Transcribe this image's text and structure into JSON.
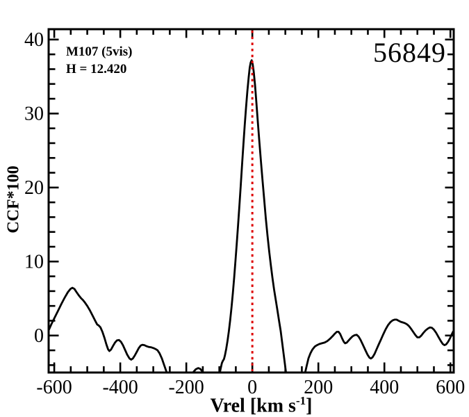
{
  "figure": {
    "background": "#ffffff",
    "frame_color": "#000000"
  },
  "chart_data": {
    "type": "line",
    "title": "",
    "ylabel": "CCF*100",
    "xlabel_parts": {
      "main": "Vrel [km s",
      "sup": "-1",
      "close": "]"
    },
    "xlim": [
      -617,
      610
    ],
    "ylim": [
      -5.0,
      41.4
    ],
    "x_major_ticks": [
      -600,
      -400,
      -200,
      0,
      200,
      400,
      600
    ],
    "x_minor_step": 50,
    "y_major_ticks": [
      0,
      10,
      20,
      30,
      40
    ],
    "y_minor_step": 2,
    "grid": false,
    "legend": null,
    "marker_line": {
      "x": 0,
      "color": "#dd0000",
      "style": "dotted"
    },
    "annotations": [
      {
        "id": "target-name",
        "text": "M107 (5vis)"
      },
      {
        "id": "h-magnitude",
        "text": "H = 12.420"
      },
      {
        "id": "mjd-number",
        "text": "56849"
      }
    ],
    "series": [
      {
        "name": "ccf-curve",
        "color": "#000000",
        "points": [
          [
            -617,
            0.7
          ],
          [
            -608,
            1.6
          ],
          [
            -598,
            2.5
          ],
          [
            -588,
            3.4
          ],
          [
            -578,
            4.3
          ],
          [
            -568,
            5.15
          ],
          [
            -559,
            5.85
          ],
          [
            -551,
            6.3
          ],
          [
            -545,
            6.45
          ],
          [
            -539,
            6.3
          ],
          [
            -533,
            5.9
          ],
          [
            -526,
            5.45
          ],
          [
            -519,
            5.05
          ],
          [
            -513,
            4.8
          ],
          [
            -507,
            4.45
          ],
          [
            -500,
            4.0
          ],
          [
            -492,
            3.4
          ],
          [
            -484,
            2.7
          ],
          [
            -476,
            2.0
          ],
          [
            -470,
            1.5
          ],
          [
            -465,
            1.35
          ],
          [
            -460,
            1.1
          ],
          [
            -454,
            0.5
          ],
          [
            -448,
            -0.3
          ],
          [
            -442,
            -1.2
          ],
          [
            -437,
            -1.85
          ],
          [
            -433,
            -2.1
          ],
          [
            -428,
            -1.9
          ],
          [
            -422,
            -1.4
          ],
          [
            -416,
            -0.95
          ],
          [
            -410,
            -0.65
          ],
          [
            -404,
            -0.6
          ],
          [
            -398,
            -0.85
          ],
          [
            -392,
            -1.3
          ],
          [
            -386,
            -1.9
          ],
          [
            -379,
            -2.6
          ],
          [
            -372,
            -3.1
          ],
          [
            -367,
            -3.25
          ],
          [
            -362,
            -3.1
          ],
          [
            -356,
            -2.7
          ],
          [
            -350,
            -2.2
          ],
          [
            -344,
            -1.7
          ],
          [
            -338,
            -1.35
          ],
          [
            -333,
            -1.25
          ],
          [
            -327,
            -1.3
          ],
          [
            -320,
            -1.45
          ],
          [
            -313,
            -1.55
          ],
          [
            -306,
            -1.6
          ],
          [
            -299,
            -1.7
          ],
          [
            -292,
            -1.85
          ],
          [
            -287,
            -2.0
          ],
          [
            -281,
            -2.4
          ],
          [
            -274,
            -3.1
          ],
          [
            -267,
            -4.0
          ],
          [
            -260,
            -4.9
          ],
          [
            -253,
            -5.8
          ],
          [
            -246,
            -6.6
          ],
          [
            -238,
            -7.3
          ],
          [
            -228,
            -7.7
          ],
          [
            -217,
            -7.5
          ],
          [
            -206,
            -6.8
          ],
          [
            -195,
            -6.0
          ],
          [
            -186,
            -5.4
          ],
          [
            -178,
            -4.9
          ],
          [
            -171,
            -4.55
          ],
          [
            -164,
            -4.4
          ],
          [
            -158,
            -4.5
          ],
          [
            -152,
            -4.8
          ],
          [
            -146,
            -5.3
          ],
          [
            -139,
            -6.0
          ],
          [
            -131,
            -6.8
          ],
          [
            -122,
            -7.4
          ],
          [
            -114,
            -7.3
          ],
          [
            -107,
            -6.6
          ],
          [
            -101,
            -5.6
          ],
          [
            -96,
            -4.5
          ],
          [
            -92,
            -3.7
          ],
          [
            -89,
            -3.4
          ],
          [
            -86,
            -3.2
          ],
          [
            -83,
            -2.7
          ],
          [
            -79,
            -1.8
          ],
          [
            -75,
            -0.7
          ],
          [
            -71,
            0.6
          ],
          [
            -67,
            2.1
          ],
          [
            -63,
            3.8
          ],
          [
            -59,
            5.7
          ],
          [
            -55,
            7.8
          ],
          [
            -51,
            10.1
          ],
          [
            -47,
            12.5
          ],
          [
            -43,
            15.0
          ],
          [
            -39,
            17.6
          ],
          [
            -35,
            20.3
          ],
          [
            -31,
            23.1
          ],
          [
            -27,
            25.8
          ],
          [
            -23,
            28.4
          ],
          [
            -19,
            30.8
          ],
          [
            -15,
            33.0
          ],
          [
            -11,
            34.9
          ],
          [
            -8,
            36.2
          ],
          [
            -5,
            36.9
          ],
          [
            -2,
            37.2
          ],
          [
            1,
            36.7
          ],
          [
            4,
            35.7
          ],
          [
            8,
            33.9
          ],
          [
            12,
            31.6
          ],
          [
            16,
            29.2
          ],
          [
            21,
            26.4
          ],
          [
            26,
            23.6
          ],
          [
            31,
            20.9
          ],
          [
            36,
            18.3
          ],
          [
            41,
            15.8
          ],
          [
            46,
            13.5
          ],
          [
            51,
            11.4
          ],
          [
            56,
            9.5
          ],
          [
            61,
            7.8
          ],
          [
            66,
            6.2
          ],
          [
            71,
            4.8
          ],
          [
            76,
            3.4
          ],
          [
            81,
            2.0
          ],
          [
            86,
            0.6
          ],
          [
            90,
            -0.8
          ],
          [
            94,
            -2.2
          ],
          [
            98,
            -3.6
          ],
          [
            102,
            -5.0
          ],
          [
            107,
            -6.5
          ],
          [
            113,
            -7.8
          ],
          [
            121,
            -8.7
          ],
          [
            131,
            -9.1
          ],
          [
            141,
            -8.6
          ],
          [
            149,
            -7.3
          ],
          [
            155,
            -6.1
          ],
          [
            160,
            -5.0
          ],
          [
            165,
            -4.0
          ],
          [
            170,
            -3.1
          ],
          [
            176,
            -2.4
          ],
          [
            182,
            -1.9
          ],
          [
            189,
            -1.5
          ],
          [
            196,
            -1.3
          ],
          [
            203,
            -1.15
          ],
          [
            211,
            -1.05
          ],
          [
            219,
            -0.95
          ],
          [
            227,
            -0.75
          ],
          [
            235,
            -0.45
          ],
          [
            243,
            -0.1
          ],
          [
            250,
            0.25
          ],
          [
            256,
            0.5
          ],
          [
            261,
            0.5
          ],
          [
            266,
            0.2
          ],
          [
            272,
            -0.4
          ],
          [
            277,
            -0.85
          ],
          [
            281,
            -1.05
          ],
          [
            286,
            -0.95
          ],
          [
            292,
            -0.65
          ],
          [
            298,
            -0.35
          ],
          [
            304,
            -0.1
          ],
          [
            310,
            0.05
          ],
          [
            316,
            0.1
          ],
          [
            322,
            -0.15
          ],
          [
            328,
            -0.6
          ],
          [
            335,
            -1.25
          ],
          [
            342,
            -1.95
          ],
          [
            349,
            -2.6
          ],
          [
            355,
            -3.0
          ],
          [
            359,
            -3.1
          ],
          [
            364,
            -2.95
          ],
          [
            370,
            -2.5
          ],
          [
            376,
            -1.9
          ],
          [
            383,
            -1.2
          ],
          [
            390,
            -0.5
          ],
          [
            397,
            0.2
          ],
          [
            404,
            0.85
          ],
          [
            411,
            1.4
          ],
          [
            418,
            1.8
          ],
          [
            425,
            2.05
          ],
          [
            431,
            2.15
          ],
          [
            437,
            2.15
          ],
          [
            443,
            2.0
          ],
          [
            450,
            1.85
          ],
          [
            457,
            1.75
          ],
          [
            463,
            1.65
          ],
          [
            469,
            1.5
          ],
          [
            475,
            1.25
          ],
          [
            481,
            0.9
          ],
          [
            488,
            0.45
          ],
          [
            494,
            0.05
          ],
          [
            500,
            -0.25
          ],
          [
            506,
            -0.25
          ],
          [
            512,
            0.0
          ],
          [
            518,
            0.35
          ],
          [
            525,
            0.7
          ],
          [
            532,
            0.95
          ],
          [
            538,
            1.1
          ],
          [
            544,
            1.05
          ],
          [
            550,
            0.8
          ],
          [
            557,
            0.35
          ],
          [
            564,
            -0.2
          ],
          [
            571,
            -0.75
          ],
          [
            577,
            -1.15
          ],
          [
            582,
            -1.3
          ],
          [
            587,
            -1.2
          ],
          [
            593,
            -0.85
          ],
          [
            599,
            -0.35
          ],
          [
            604,
            0.15
          ],
          [
            608,
            0.5
          ],
          [
            610,
            0.65
          ]
        ]
      }
    ]
  }
}
